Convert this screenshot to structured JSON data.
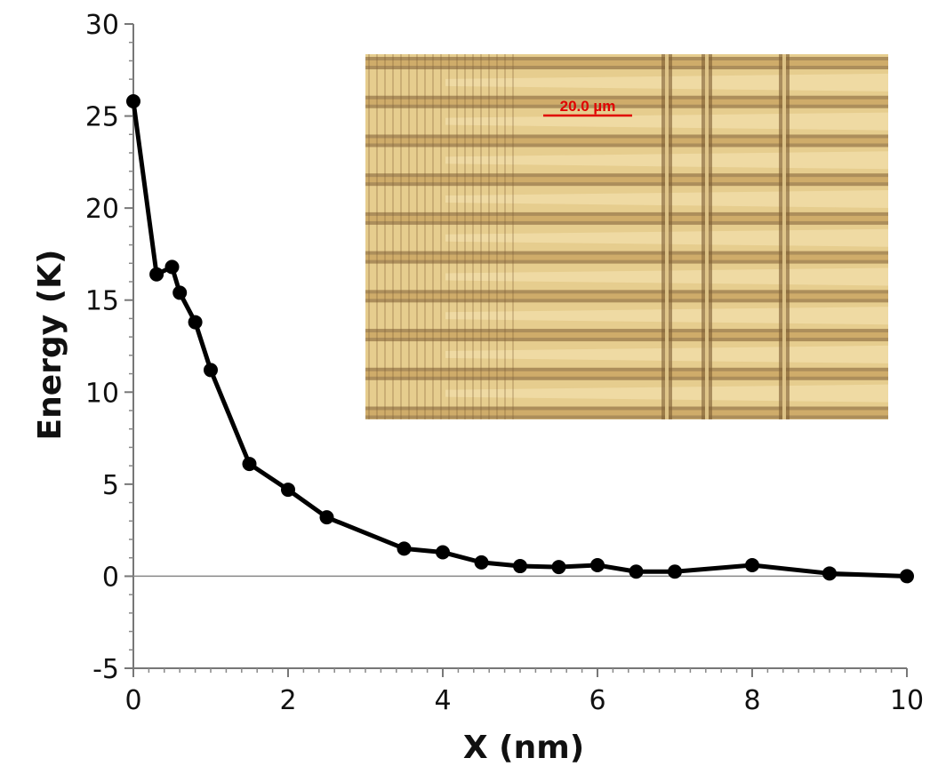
{
  "chart_data": {
    "type": "line",
    "xlabel": "X (nm)",
    "ylabel": "Energy (K)",
    "xlim": [
      0,
      10
    ],
    "ylim": [
      -5,
      30
    ],
    "xticks": [
      0,
      2,
      4,
      6,
      8,
      10
    ],
    "yticks": [
      -5,
      0,
      5,
      10,
      15,
      20,
      25,
      30
    ],
    "reference_line_y": 0,
    "series": [
      {
        "name": "Energy",
        "color": "#000000",
        "x": [
          0,
          0.3,
          0.5,
          0.6,
          0.8,
          1.0,
          1.5,
          2.0,
          2.5,
          3.5,
          4.0,
          4.5,
          5.0,
          5.5,
          6.0,
          6.5,
          7.0,
          8.0,
          9.0,
          10.0
        ],
        "y": [
          25.8,
          16.4,
          16.8,
          15.4,
          13.8,
          11.2,
          6.1,
          4.7,
          3.2,
          1.5,
          1.3,
          0.75,
          0.55,
          0.5,
          0.6,
          0.25,
          0.25,
          0.6,
          0.15,
          0.0
        ]
      }
    ]
  },
  "inset": {
    "kind": "optical micrograph",
    "scale_bar_label": "20.0 µm",
    "scale_bar_color": "#e00000",
    "background_color": "#e6cd8e",
    "stripe_color": "#7c5b32",
    "rows": 9
  }
}
